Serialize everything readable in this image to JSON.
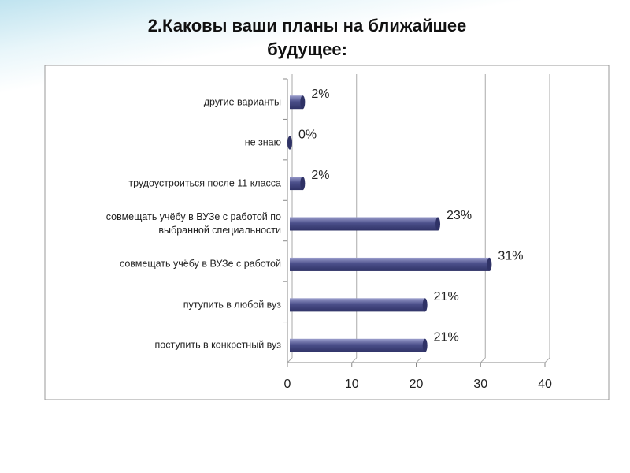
{
  "chart_data": {
    "type": "bar",
    "orientation": "horizontal",
    "title": "2.Каковы ваши планы на ближайшее будущее:",
    "categories": [
      "другие варианты",
      "не знаю",
      "трудоустроиться после 11 класса",
      "совмещать учёбу в ВУЗе с работой по выбранной специальности",
      "совмещать учёбу в ВУЗе с работой",
      "путупить в любой вуз",
      "поступить в конкретный вуз"
    ],
    "values": [
      2,
      0,
      2,
      23,
      31,
      21,
      21
    ],
    "value_labels": [
      "2%",
      "0%",
      "2%",
      "23%",
      "31%",
      "21%",
      "21%"
    ],
    "color": "#4b4f8a",
    "xlim": [
      0,
      40
    ],
    "xticks": [
      0,
      10,
      20,
      30,
      40
    ],
    "grid": true
  }
}
